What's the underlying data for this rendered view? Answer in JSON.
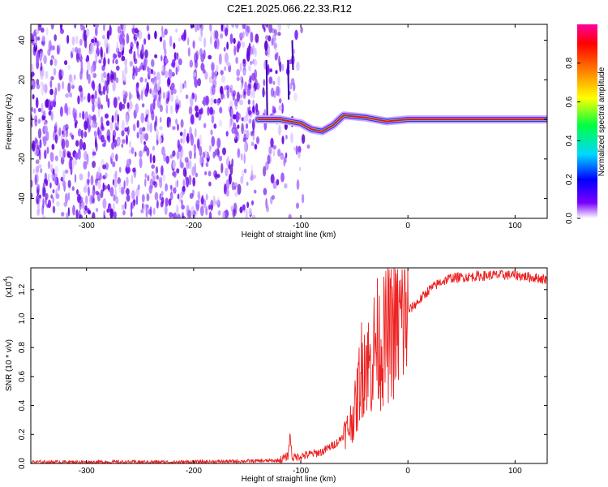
{
  "figure_title": "C2E1.2025.066.22.33.R12",
  "colors": {
    "snr_line": "#ee2222",
    "noise_violet": "#6a00e8",
    "trace_red": "#e8101a",
    "background": "#ffffff"
  },
  "chart_data": [
    {
      "type": "heatmap",
      "xlabel": "Height of straight line (km)",
      "ylabel": "Frequency (Hz)",
      "xlim": [
        -352,
        130
      ],
      "ylim": [
        -50,
        48
      ],
      "x_ticks": [
        -300,
        -200,
        -100,
        0,
        100
      ],
      "x_tick_labels": [
        "-300",
        "-200",
        "-100",
        "0",
        "100"
      ],
      "y_ticks": [
        -40,
        -20,
        0,
        20,
        40
      ],
      "y_tick_labels": [
        "-40",
        "-20",
        "0",
        "20",
        "40"
      ],
      "colorbar": {
        "label": "Normalized spectral amplitude",
        "range": [
          0,
          1
        ],
        "ticks": [
          0,
          0.2,
          0.4,
          0.6,
          0.8
        ],
        "tick_labels": [
          "0.0",
          "0.2",
          "0.4",
          "0.6",
          "0.8"
        ],
        "colormap": [
          "#ffffff",
          "#7a00ff",
          "#0000ff",
          "#00d8ff",
          "#00ff40",
          "#ffff00",
          "#ff8000",
          "#ff0000",
          "#ff00a0"
        ]
      },
      "noise_region_x": [
        -352,
        -90
      ],
      "gap_x": [
        -140,
        -135
      ],
      "trace": [
        {
          "x": -140,
          "y": 0
        },
        {
          "x": -120,
          "y": 0
        },
        {
          "x": -100,
          "y": -2
        },
        {
          "x": -90,
          "y": -5
        },
        {
          "x": -80,
          "y": -6
        },
        {
          "x": -70,
          "y": -3
        },
        {
          "x": -60,
          "y": 2
        },
        {
          "x": -40,
          "y": 1
        },
        {
          "x": -20,
          "y": -1
        },
        {
          "x": 0,
          "y": 0
        },
        {
          "x": 130,
          "y": 0
        }
      ]
    },
    {
      "type": "line",
      "xlabel": "Height of straight line (km)",
      "ylabel": "SNR (10 * v/v)",
      "y_multiplier": "(x10",
      "y_multiplier_exp": "4",
      "y_multiplier_close": ")",
      "xlim": [
        -352,
        130
      ],
      "ylim": [
        0,
        1.35
      ],
      "x_ticks": [
        -300,
        -200,
        -100,
        0,
        100
      ],
      "x_tick_labels": [
        "-300",
        "-200",
        "-100",
        "0",
        "100"
      ],
      "y_ticks": [
        0,
        0.2,
        0.4,
        0.6,
        0.8,
        1.0,
        1.2
      ],
      "y_tick_labels": [
        "0.0",
        "0.2",
        "0.4",
        "0.6",
        "0.8",
        "1.0",
        "1.2"
      ],
      "series": [
        {
          "color": "#ee2222",
          "x": [
            -352,
            -300,
            -200,
            -120,
            -112,
            -110,
            -108,
            -100,
            -80,
            -65,
            -55,
            -48,
            -45,
            -40,
            -35,
            -30,
            -25,
            -20,
            -15,
            -10,
            -5,
            0,
            10,
            20,
            30,
            40,
            60,
            80,
            100,
            110,
            120,
            130
          ],
          "y": [
            0.01,
            0.01,
            0.01,
            0.02,
            0.05,
            0.2,
            0.04,
            0.05,
            0.08,
            0.15,
            0.25,
            0.4,
            0.6,
            0.75,
            0.65,
            0.85,
            0.8,
            0.88,
            0.92,
            0.95,
            1.0,
            1.05,
            1.12,
            1.2,
            1.25,
            1.28,
            1.29,
            1.3,
            1.3,
            1.29,
            1.28,
            1.27
          ]
        }
      ]
    }
  ]
}
